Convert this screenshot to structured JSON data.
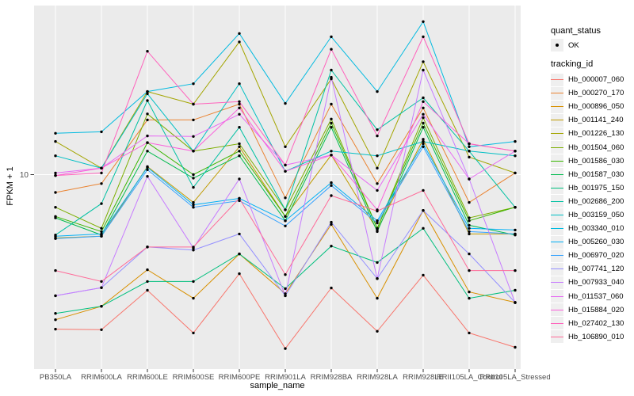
{
  "figure": {
    "background": "#FFFFFF",
    "panel_background": "#EBEBEB",
    "grid_color": "#FFFFFF",
    "axis_text_color": "#4D4D4D",
    "tick_color": "#333333",
    "point_color": "#000000"
  },
  "chart_data": {
    "type": "line",
    "title": "",
    "xlabel": "sample_name",
    "ylabel": "FPKM + 1",
    "y_scale": "log10",
    "ylim": [
      1,
      73.5
    ],
    "y_ticks": [
      {
        "value": 10,
        "label": "10"
      }
    ],
    "grid": "white-on-gray, vertical line per category, horizontal line at y=10",
    "legend_position": "right",
    "categories": [
      "PB350LA",
      "RRIM600LA",
      "RRIM600LE",
      "RRIM600SE",
      "RRIM600PE",
      "RRIM901LA",
      "RRIM928BA",
      "RRIM928LA",
      "RRIM928LE",
      "RRII105LA_Control",
      "RRII105LA_Stressed"
    ],
    "legend": {
      "quant_status": {
        "title": "quant_status",
        "items": [
          {
            "label": "OK",
            "marker": "black-point"
          }
        ]
      },
      "tracking_id": {
        "title": "tracking_id"
      }
    },
    "series": [
      {
        "name": "Hb_000007_060",
        "color": "#F8766D",
        "values": [
          1.61,
          1.6,
          2.55,
          1.54,
          3.1,
          1.28,
          2.62,
          1.57,
          3.05,
          1.54,
          1.3
        ]
      },
      {
        "name": "Hb_000270_170",
        "color": "#EA8331",
        "values": [
          8.1,
          9.0,
          19.1,
          19.1,
          23.0,
          7.6,
          23.0,
          9.0,
          22.0,
          7.2,
          10.2
        ]
      },
      {
        "name": "Hb_000896_050",
        "color": "#D89000",
        "values": [
          1.8,
          2.11,
          3.25,
          2.32,
          3.92,
          2.45,
          5.55,
          2.32,
          6.55,
          2.5,
          2.21
        ]
      },
      {
        "name": "Hb_001141_240",
        "color": "#C09B00",
        "values": [
          4.73,
          4.83,
          11.0,
          7.2,
          13.9,
          6.1,
          12.6,
          5.2,
          15.2,
          4.96,
          4.96
        ]
      },
      {
        "name": "Hb_001226_130",
        "color": "#A3A500",
        "values": [
          14.8,
          10.8,
          26.7,
          23.0,
          48.0,
          13.9,
          31.0,
          10.8,
          38.0,
          12.3,
          10.2
        ]
      },
      {
        "name": "Hb_001504_060",
        "color": "#7CAE00",
        "values": [
          6.8,
          5.3,
          20.5,
          13.2,
          14.4,
          6.6,
          19.3,
          5.3,
          19.6,
          6.0,
          6.8
        ]
      },
      {
        "name": "Hb_001586_030",
        "color": "#39B600",
        "values": [
          6.1,
          5.1,
          14.6,
          10.0,
          13.2,
          6.1,
          18.4,
          5.3,
          18.4,
          5.8,
          6.8
        ]
      },
      {
        "name": "Hb_001587_030",
        "color": "#00BB4E",
        "values": [
          6.0,
          4.9,
          13.2,
          9.6,
          12.5,
          5.8,
          17.5,
          5.1,
          17.5,
          5.5,
          4.9
        ]
      },
      {
        "name": "Hb_001975_150",
        "color": "#00BF7D",
        "values": [
          1.94,
          2.11,
          2.83,
          2.83,
          3.92,
          2.6,
          4.3,
          3.54,
          5.3,
          2.32,
          2.55
        ]
      },
      {
        "name": "Hb_002686_200",
        "color": "#00C1A3",
        "values": [
          4.9,
          7.1,
          24.0,
          8.6,
          17.5,
          6.6,
          34.4,
          17.0,
          24.8,
          13.2,
          6.8
        ]
      },
      {
        "name": "Hb_003159_050",
        "color": "#00BFC4",
        "values": [
          12.5,
          10.8,
          26.0,
          13.2,
          29.3,
          10.4,
          13.2,
          12.5,
          14.8,
          13.2,
          12.5
        ]
      },
      {
        "name": "Hb_003340_010",
        "color": "#00BAE0",
        "values": [
          16.3,
          16.6,
          26.7,
          29.3,
          53.0,
          23.2,
          51.0,
          26.7,
          61.0,
          13.9,
          14.8
        ]
      },
      {
        "name": "Hb_005260_030",
        "color": "#00B0F6",
        "values": [
          4.83,
          4.96,
          10.9,
          7.0,
          7.55,
          5.8,
          9.1,
          5.8,
          14.4,
          5.3,
          5.2
        ]
      },
      {
        "name": "Hb_006970_020",
        "color": "#35A2FF",
        "values": [
          4.7,
          4.83,
          10.6,
          6.8,
          7.35,
          5.45,
          8.8,
          5.65,
          13.9,
          5.1,
          4.96
        ]
      },
      {
        "name": "Hb_007741_120",
        "color": "#9590FF",
        "values": [
          2.39,
          2.63,
          4.26,
          4.1,
          4.96,
          2.39,
          5.7,
          2.93,
          6.55,
          3.92,
          2.21
        ]
      },
      {
        "name": "Hb_007933_040",
        "color": "#C77CFF",
        "values": [
          2.39,
          2.63,
          9.8,
          4.2,
          9.5,
          2.39,
          31.6,
          2.93,
          34.4,
          9.5,
          2.2
        ]
      },
      {
        "name": "Hb_011537_060",
        "color": "#E76BF3",
        "values": [
          10.2,
          10.8,
          15.8,
          15.7,
          20.4,
          11.2,
          12.6,
          8.3,
          20.4,
          9.5,
          13.2
        ]
      },
      {
        "name": "Hb_015884_020",
        "color": "#FA62DB",
        "values": [
          9.9,
          10.8,
          14.6,
          13.2,
          22.0,
          10.4,
          12.6,
          6.6,
          23.7,
          14.4,
          13.2
        ]
      },
      {
        "name": "Hb_027402_130",
        "color": "#FF62BC",
        "values": [
          9.9,
          10.2,
          43.0,
          23.0,
          23.7,
          11.2,
          44.0,
          15.8,
          51.0,
          14.4,
          13.2
        ]
      },
      {
        "name": "Hb_106890_010",
        "color": "#FF6A98",
        "values": [
          3.22,
          2.83,
          4.25,
          4.25,
          7.55,
          3.07,
          7.8,
          6.5,
          8.3,
          3.22,
          3.22
        ]
      }
    ]
  }
}
